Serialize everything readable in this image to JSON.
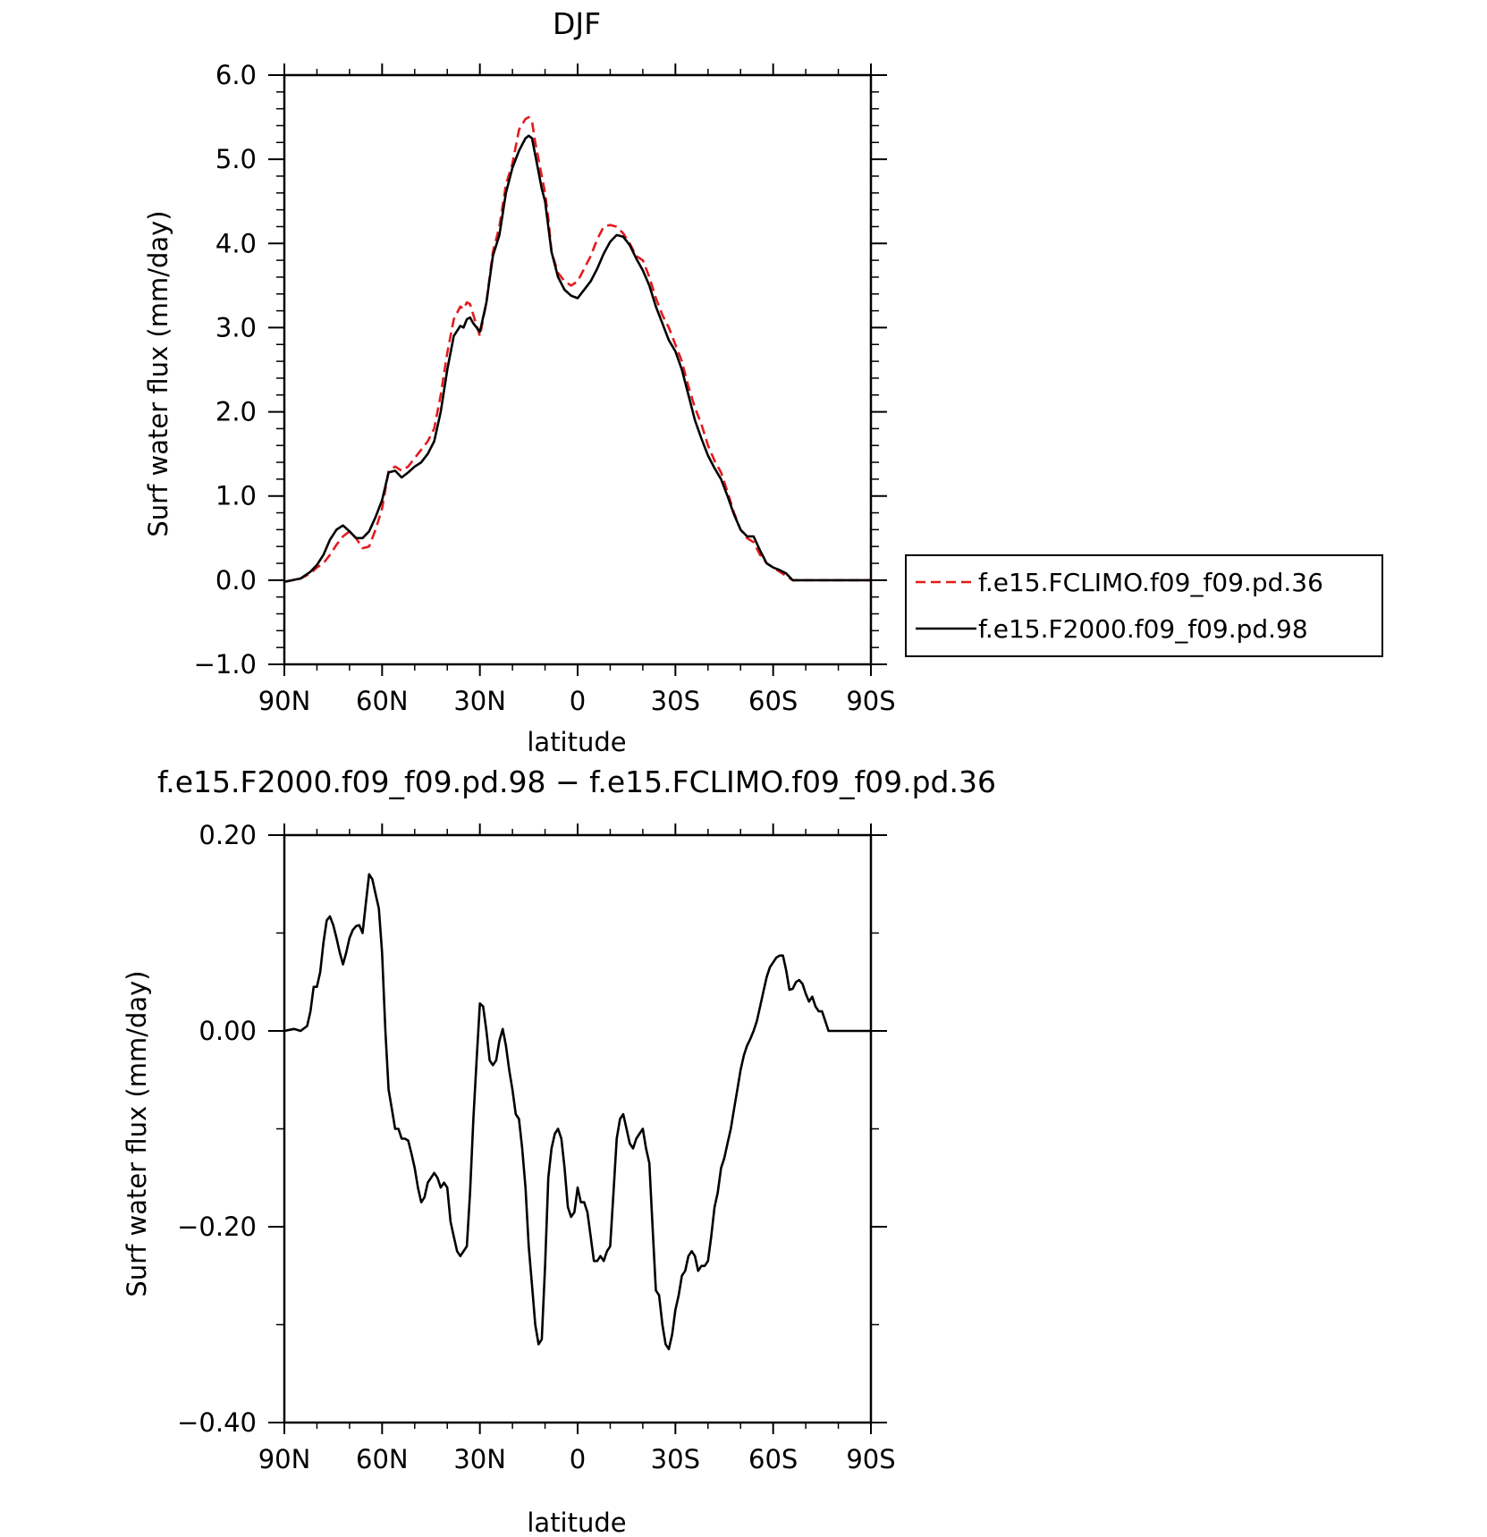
{
  "figure": {
    "panel_titles": [
      "DJF",
      "f.e15.F2000.f09_f09.pd.98 − f.e15.FCLIMO.f09_f09.pd.36"
    ]
  },
  "legend": {
    "entries": [
      {
        "label": "f.e15.FCLIMO.f09_f09.pd.36",
        "color": "#e41a1c",
        "dash": "dashed"
      },
      {
        "label": "f.e15.F2000.f09_f09.pd.98",
        "color": "#000000",
        "dash": "solid"
      }
    ]
  },
  "chart_data": [
    {
      "type": "line",
      "title": "DJF",
      "xlabel": "latitude",
      "ylabel": "Surf water flux (mm/day)",
      "xlim": [
        90,
        -90
      ],
      "ylim": [
        -1.0,
        6.0
      ],
      "x_tick_values": [
        90,
        60,
        30,
        0,
        -30,
        -60,
        -90
      ],
      "x_tick_labels": [
        "90N",
        "60N",
        "30N",
        "0",
        "30S",
        "60S",
        "90S"
      ],
      "y_tick_values": [
        -1.0,
        0.0,
        1.0,
        2.0,
        3.0,
        4.0,
        5.0,
        6.0
      ],
      "y_tick_labels": [
        "−1.0",
        "0.0",
        "1.0",
        "2.0",
        "3.0",
        "4.0",
        "5.0",
        "6.0"
      ],
      "grid": false,
      "legend_position": "right, outside plot",
      "series": [
        {
          "name": "f.e15.FCLIMO.f09_f09.pd.36",
          "color": "#e41a1c",
          "dash": "dashed",
          "x": [
            90,
            85,
            82,
            80,
            78,
            76,
            74,
            72,
            70,
            68,
            66,
            64,
            62,
            60,
            58,
            56,
            54,
            52,
            50,
            48,
            46,
            44,
            42,
            40,
            38,
            36,
            35,
            34,
            33,
            32,
            30,
            28,
            26,
            24,
            22,
            20,
            18,
            16,
            15,
            14,
            13,
            12,
            11,
            10,
            9,
            8,
            6,
            4,
            2,
            0,
            -2,
            -4,
            -6,
            -8,
            -10,
            -12,
            -14,
            -16,
            -18,
            -20,
            -22,
            -24,
            -26,
            -28,
            -30,
            -32,
            -34,
            -36,
            -38,
            -40,
            -42,
            -44,
            -46,
            -48,
            -50,
            -52,
            -54,
            -56,
            -58,
            -60,
            -62,
            -64,
            -66,
            -68,
            -70,
            -72,
            -74,
            -76,
            -78,
            -80,
            -82,
            -84,
            -86,
            -88,
            -90
          ],
          "y": [
            -0.02,
            0.02,
            0.08,
            0.15,
            0.2,
            0.3,
            0.42,
            0.52,
            0.58,
            0.5,
            0.38,
            0.4,
            0.6,
            0.85,
            1.3,
            1.35,
            1.3,
            1.35,
            1.45,
            1.55,
            1.65,
            1.8,
            2.2,
            2.7,
            3.1,
            3.25,
            3.22,
            3.3,
            3.28,
            3.15,
            2.9,
            3.3,
            3.9,
            4.2,
            4.7,
            4.95,
            5.35,
            5.48,
            5.5,
            5.45,
            5.2,
            5.0,
            4.8,
            4.6,
            4.3,
            3.9,
            3.65,
            3.55,
            3.5,
            3.55,
            3.7,
            3.85,
            4.05,
            4.2,
            4.22,
            4.2,
            4.12,
            4.0,
            3.85,
            3.8,
            3.6,
            3.35,
            3.15,
            3.0,
            2.8,
            2.6,
            2.3,
            2.05,
            1.85,
            1.6,
            1.42,
            1.28,
            1.05,
            0.8,
            0.6,
            0.5,
            0.45,
            0.3,
            0.2,
            0.15,
            0.1,
            0.05,
            0.0,
            0.0,
            0.0,
            0.0,
            0.0,
            0.0,
            0.0,
            0.0,
            0.0,
            0.0,
            0.0,
            0.0,
            0.0
          ]
        },
        {
          "name": "f.e15.F2000.f09_f09.pd.98",
          "color": "#000000",
          "dash": "solid",
          "x": [
            90,
            85,
            82,
            80,
            78,
            76,
            74,
            72,
            70,
            68,
            66,
            64,
            62,
            60,
            58,
            56,
            54,
            52,
            50,
            48,
            46,
            44,
            42,
            40,
            38,
            36,
            35,
            34,
            33,
            32,
            30,
            28,
            26,
            24,
            22,
            20,
            18,
            16,
            15,
            14,
            13,
            12,
            11,
            10,
            9,
            8,
            6,
            4,
            2,
            0,
            -2,
            -4,
            -6,
            -8,
            -10,
            -12,
            -14,
            -16,
            -18,
            -20,
            -22,
            -24,
            -26,
            -28,
            -30,
            -32,
            -34,
            -36,
            -38,
            -40,
            -42,
            -44,
            -46,
            -48,
            -50,
            -52,
            -54,
            -56,
            -58,
            -60,
            -62,
            -64,
            -66,
            -68,
            -70,
            -72,
            -74,
            -76,
            -78,
            -80,
            -82,
            -84,
            -86,
            -88,
            -90
          ],
          "y": [
            -0.02,
            0.02,
            0.1,
            0.18,
            0.3,
            0.48,
            0.6,
            0.65,
            0.58,
            0.5,
            0.5,
            0.58,
            0.75,
            0.95,
            1.28,
            1.3,
            1.22,
            1.28,
            1.35,
            1.4,
            1.5,
            1.65,
            2.0,
            2.5,
            2.9,
            3.02,
            3.0,
            3.1,
            3.12,
            3.05,
            2.95,
            3.3,
            3.85,
            4.1,
            4.6,
            4.9,
            5.1,
            5.25,
            5.28,
            5.25,
            5.05,
            4.85,
            4.65,
            4.5,
            4.2,
            3.9,
            3.6,
            3.45,
            3.38,
            3.35,
            3.45,
            3.55,
            3.7,
            3.88,
            4.02,
            4.1,
            4.08,
            3.98,
            3.82,
            3.68,
            3.5,
            3.25,
            3.05,
            2.85,
            2.72,
            2.5,
            2.2,
            1.9,
            1.68,
            1.48,
            1.33,
            1.2,
            1.0,
            0.78,
            0.6,
            0.52,
            0.52,
            0.35,
            0.2,
            0.15,
            0.12,
            0.08,
            0.0,
            0.0,
            0.0,
            0.0,
            0.0,
            0.0,
            0.0,
            0.0,
            0.0,
            0.0,
            0.0,
            0.0,
            0.0
          ]
        }
      ]
    },
    {
      "type": "line",
      "title": "f.e15.F2000.f09_f09.pd.98 − f.e15.FCLIMO.f09_f09.pd.36",
      "xlabel": "latitude",
      "ylabel": "Surf water flux (mm/day)",
      "xlim": [
        90,
        -90
      ],
      "ylim": [
        -0.4,
        0.2
      ],
      "x_tick_values": [
        90,
        60,
        30,
        0,
        -30,
        -60,
        -90
      ],
      "x_tick_labels": [
        "90N",
        "60N",
        "30N",
        "0",
        "30S",
        "60S",
        "90S"
      ],
      "y_tick_values": [
        -0.4,
        -0.2,
        0.0,
        0.2
      ],
      "y_tick_labels": [
        "−0.40",
        "−0.20",
        "0.00",
        "0.20"
      ],
      "grid": false,
      "series": [
        {
          "name": "",
          "color": "#000000",
          "dash": "solid",
          "x": [
            90,
            87,
            85,
            83,
            82,
            81,
            80,
            79,
            78,
            77,
            76,
            75,
            74,
            73,
            72,
            71,
            70,
            69,
            68,
            67,
            66,
            65,
            64,
            63,
            62,
            61,
            60,
            59,
            58,
            57,
            56,
            55,
            54,
            53,
            52,
            51,
            50,
            49,
            48,
            47,
            46,
            45,
            44,
            43,
            42,
            41,
            40,
            39,
            38,
            37,
            36,
            35,
            34,
            33,
            32,
            31,
            30,
            29,
            28,
            27,
            26,
            25,
            24,
            23,
            22,
            21,
            20,
            19,
            18,
            17,
            16,
            15,
            14,
            13,
            12,
            11,
            10,
            9,
            8,
            7,
            6,
            5,
            4,
            3,
            2,
            1,
            0,
            -1,
            -2,
            -3,
            -4,
            -5,
            -6,
            -7,
            -8,
            -9,
            -10,
            -11,
            -12,
            -13,
            -14,
            -15,
            -16,
            -17,
            -18,
            -19,
            -20,
            -21,
            -22,
            -23,
            -24,
            -25,
            -26,
            -27,
            -28,
            -29,
            -30,
            -31,
            -32,
            -33,
            -34,
            -35,
            -36,
            -37,
            -38,
            -39,
            -40,
            -41,
            -42,
            -43,
            -44,
            -45,
            -46,
            -47,
            -48,
            -49,
            -50,
            -51,
            -52,
            -53,
            -54,
            -55,
            -56,
            -57,
            -58,
            -59,
            -60,
            -61,
            -62,
            -63,
            -64,
            -65,
            -66,
            -67,
            -68,
            -69,
            -70,
            -71,
            -72,
            -73,
            -74,
            -75,
            -76,
            -77,
            -78,
            -80,
            -82,
            -84,
            -86,
            -88,
            -90
          ],
          "y": [
            0.0,
            0.002,
            0.0,
            0.005,
            0.02,
            0.045,
            0.045,
            0.06,
            0.09,
            0.113,
            0.117,
            0.108,
            0.095,
            0.08,
            0.068,
            0.08,
            0.095,
            0.103,
            0.107,
            0.108,
            0.1,
            0.13,
            0.16,
            0.155,
            0.14,
            0.125,
            0.08,
            0.0,
            -0.06,
            -0.08,
            -0.1,
            -0.1,
            -0.11,
            -0.11,
            -0.112,
            -0.125,
            -0.14,
            -0.16,
            -0.175,
            -0.17,
            -0.155,
            -0.15,
            -0.145,
            -0.15,
            -0.16,
            -0.155,
            -0.16,
            -0.195,
            -0.21,
            -0.225,
            -0.23,
            -0.225,
            -0.22,
            -0.165,
            -0.09,
            -0.03,
            0.028,
            0.025,
            0.0,
            -0.03,
            -0.035,
            -0.03,
            -0.01,
            0.002,
            -0.015,
            -0.04,
            -0.06,
            -0.085,
            -0.09,
            -0.12,
            -0.16,
            -0.22,
            -0.26,
            -0.3,
            -0.32,
            -0.315,
            -0.24,
            -0.15,
            -0.12,
            -0.105,
            -0.1,
            -0.11,
            -0.14,
            -0.18,
            -0.19,
            -0.185,
            -0.16,
            -0.175,
            -0.175,
            -0.185,
            -0.21,
            -0.235,
            -0.235,
            -0.23,
            -0.235,
            -0.225,
            -0.22,
            -0.165,
            -0.11,
            -0.09,
            -0.085,
            -0.1,
            -0.115,
            -0.12,
            -0.11,
            -0.105,
            -0.1,
            -0.12,
            -0.135,
            -0.2,
            -0.265,
            -0.27,
            -0.3,
            -0.32,
            -0.325,
            -0.31,
            -0.285,
            -0.27,
            -0.25,
            -0.245,
            -0.23,
            -0.225,
            -0.23,
            -0.245,
            -0.24,
            -0.24,
            -0.235,
            -0.21,
            -0.18,
            -0.165,
            -0.14,
            -0.13,
            -0.115,
            -0.1,
            -0.08,
            -0.06,
            -0.04,
            -0.025,
            -0.015,
            -0.008,
            0.0,
            0.01,
            0.025,
            0.04,
            0.055,
            0.065,
            0.07,
            0.075,
            0.077,
            0.077,
            0.062,
            0.042,
            0.043,
            0.05,
            0.052,
            0.048,
            0.038,
            0.03,
            0.035,
            0.025,
            0.02,
            0.02,
            0.01,
            0.0,
            0.0,
            0.0,
            0.0,
            0.0,
            0.0,
            0.0,
            0.0
          ]
        }
      ]
    }
  ]
}
